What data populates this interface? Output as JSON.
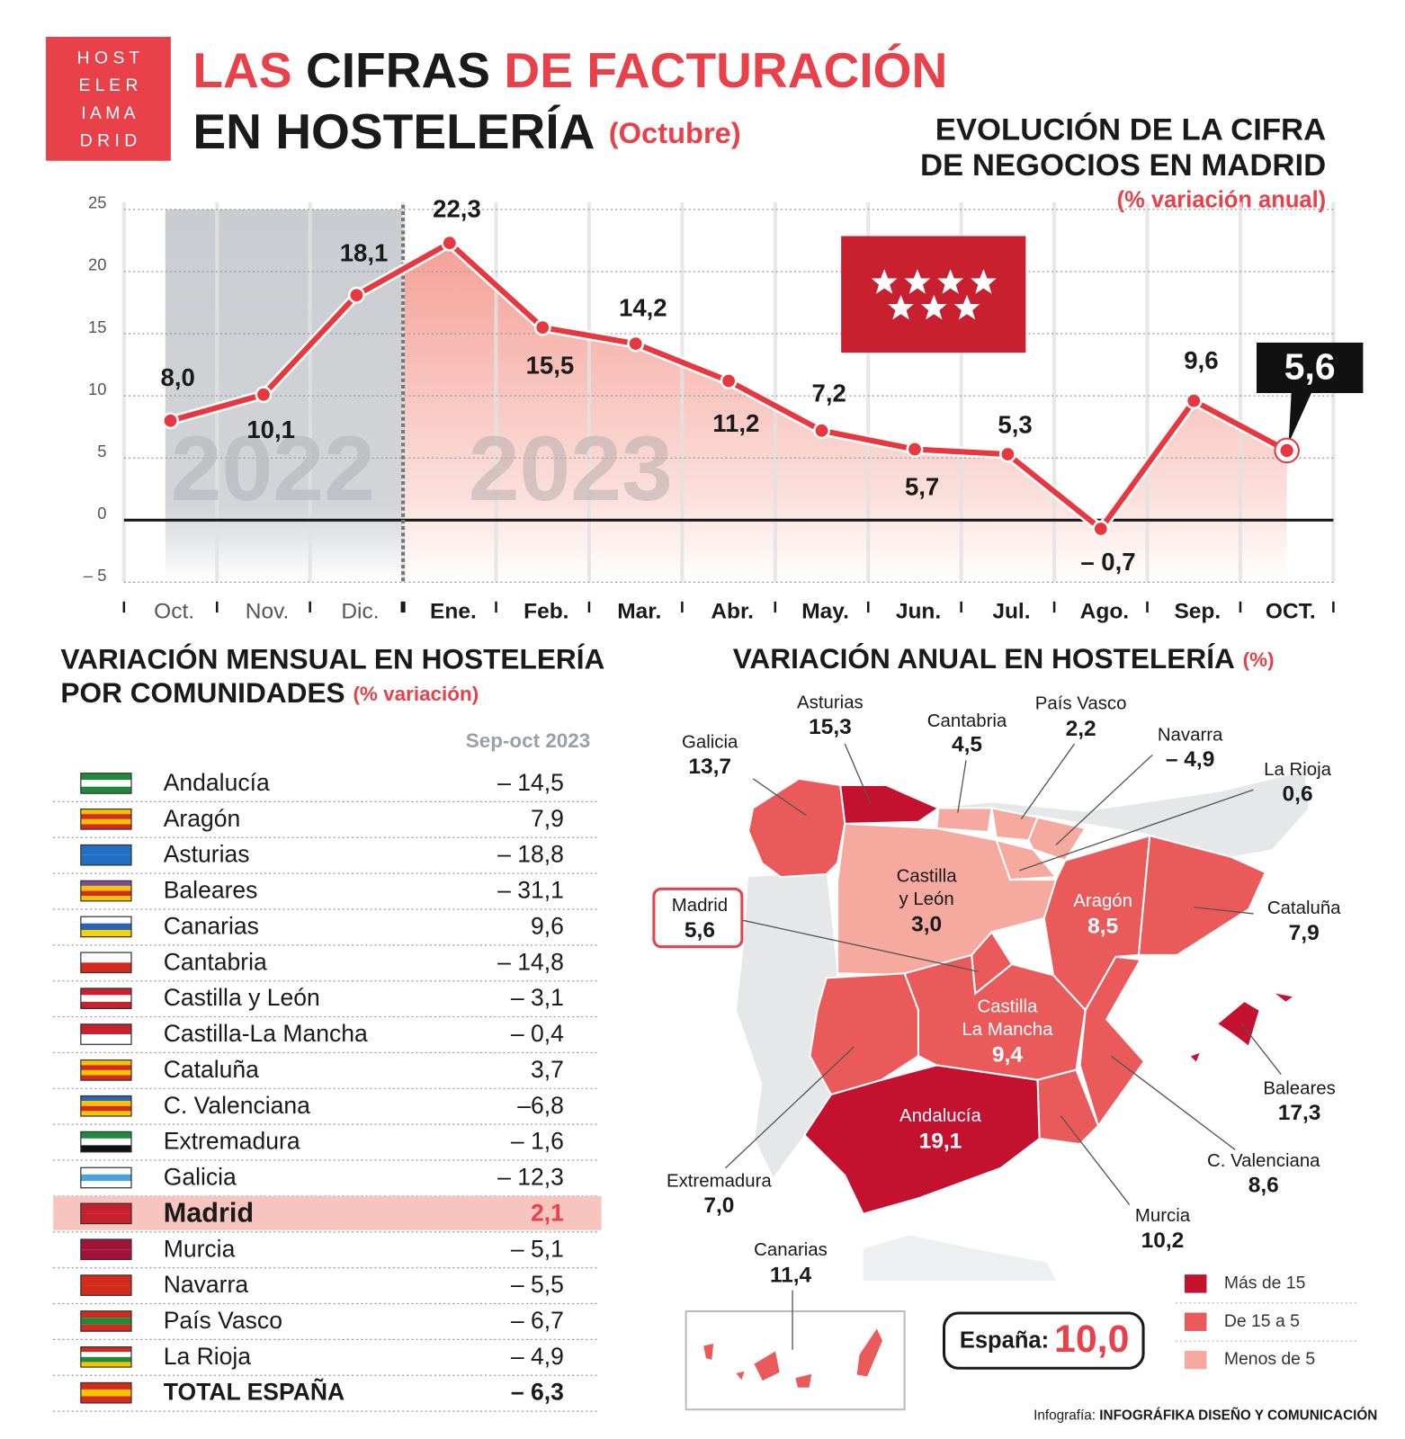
{
  "header": {
    "logo": [
      "H O S T",
      "E L E R",
      "I A M A",
      "D R I D"
    ],
    "title": {
      "line1": [
        "LAS",
        "CIFRAS",
        "DE FACTURACIÓN"
      ],
      "line2": "EN HOSTELERÍA",
      "note": "(Octubre)"
    }
  },
  "chart_data": {
    "type": "line",
    "title": [
      "EVOLUCIÓN DE LA CIFRA",
      "DE NEGOCIOS EN MADRID"
    ],
    "subtitle": "(% variación anual)",
    "categories": [
      "Oct.",
      "Nov.",
      "Dic.",
      "Ene.",
      "Feb.",
      "Mar.",
      "Abr.",
      "May.",
      "Jun.",
      "Jul.",
      "Ago.",
      "Sep.",
      "OCT."
    ],
    "values": [
      8.0,
      10.1,
      18.1,
      22.3,
      15.5,
      14.2,
      11.2,
      7.2,
      5.7,
      5.3,
      -0.7,
      9.6,
      5.6
    ],
    "value_labels": [
      "8,0",
      "10,1",
      "18,1",
      "22,3",
      "15,5",
      "14,2",
      "11,2",
      "7,2",
      "5,7",
      "5,3",
      "– 0,7",
      "9,6",
      "5,6"
    ],
    "color": "#e8383f",
    "ylim": [
      -5,
      25
    ],
    "yticks": [
      {
        "value": -5,
        "label": "– 5"
      },
      0,
      5,
      10,
      15,
      20,
      25
    ],
    "grid": true,
    "annotations": [
      "2022",
      "2023"
    ]
  },
  "table": {
    "title": [
      "VARIACIÓN MENSUAL EN HOSTELERÍA",
      "POR COMUNIDADES"
    ],
    "unit": "(% variación)",
    "column": "Sep-oct 2023",
    "rows": [
      [
        "Andalucía",
        "– 14,5"
      ],
      [
        "Aragón",
        "7,9"
      ],
      [
        "Asturias",
        "– 18,8"
      ],
      [
        "Baleares",
        "– 31,1"
      ],
      [
        "Canarias",
        "9,6"
      ],
      [
        "Cantabria",
        "– 14,8"
      ],
      [
        "Castilla y León",
        "– 3,1"
      ],
      [
        "Castilla-La Mancha",
        "– 0,4"
      ],
      [
        "Cataluña",
        "3,7"
      ],
      [
        "C. Valenciana",
        "–6,8"
      ],
      [
        "Extremadura",
        "– 1,6"
      ],
      [
        "Galicia",
        "– 12,3"
      ],
      [
        "Madrid",
        "2,1"
      ],
      [
        "Murcia",
        "– 5,1"
      ],
      [
        "Navarra",
        "– 5,5"
      ],
      [
        "País Vasco",
        "– 6,7"
      ],
      [
        "La Rioja",
        "– 4,9"
      ],
      [
        "TOTAL ESPAÑA",
        "– 6,3"
      ]
    ]
  },
  "map": {
    "title": "VARIACIÓN ANUAL EN HOSTELERÍA",
    "unit": "(%)",
    "regions": [
      {
        "name": [
          "Asturias"
        ],
        "value": "15,3",
        "color": "#c3112f"
      },
      {
        "name": [
          "Cantabria"
        ],
        "value": "4,5",
        "color": "#f5a99f"
      },
      {
        "name": [
          "País Vasco"
        ],
        "value": "2,2",
        "color": "#f5a99f"
      },
      {
        "name": [
          "Galicia"
        ],
        "value": "13,7",
        "color": "#eb5a5a"
      },
      {
        "name": [
          "Navarra"
        ],
        "value": "– 4,9",
        "color": "#f5a99f"
      },
      {
        "name": [
          "La Rioja"
        ],
        "value": "0,6",
        "color": "#f5a99f"
      },
      {
        "name": [
          "Castilla",
          "y León"
        ],
        "value": "3,0",
        "color": "#f5a99f"
      },
      {
        "name": [
          "Madrid"
        ],
        "value": "5,6",
        "color": "#eb5a5a"
      },
      {
        "name": [
          "Aragón"
        ],
        "value": "8,5",
        "color": "#eb5a5a"
      },
      {
        "name": [
          "Cataluña"
        ],
        "value": "7,9",
        "color": "#eb5a5a"
      },
      {
        "name": [
          "Castilla",
          "La Mancha"
        ],
        "value": "9,4",
        "color": "#eb5a5a"
      },
      {
        "name": [
          "Baleares"
        ],
        "value": "17,3",
        "color": "#c3112f"
      },
      {
        "name": [
          "Extremadura"
        ],
        "value": "7,0",
        "color": "#eb5a5a"
      },
      {
        "name": [
          "Andalucía"
        ],
        "value": "19,1",
        "color": "#c3112f"
      },
      {
        "name": [
          "C. Valenciana"
        ],
        "value": "8,6",
        "color": "#eb5a5a"
      },
      {
        "name": [
          "Murcia"
        ],
        "value": "10,2",
        "color": "#eb5a5a"
      },
      {
        "name": [
          "Canarias"
        ],
        "value": "11,4",
        "color": "#eb5a5a"
      }
    ],
    "legend": [
      {
        "label": "Más de 15",
        "color": "#c3112f"
      },
      {
        "label": "De 15 a 5",
        "color": "#eb5a5a"
      },
      {
        "label": "Menos de 5",
        "color": "#f5a99f"
      }
    ],
    "total": {
      "label": "España:",
      "value": "10,0"
    }
  },
  "credit": {
    "prefix": "Infografía:",
    "text": "INFOGRÁFIKA DISEÑO Y COMUNICACIÓN"
  }
}
